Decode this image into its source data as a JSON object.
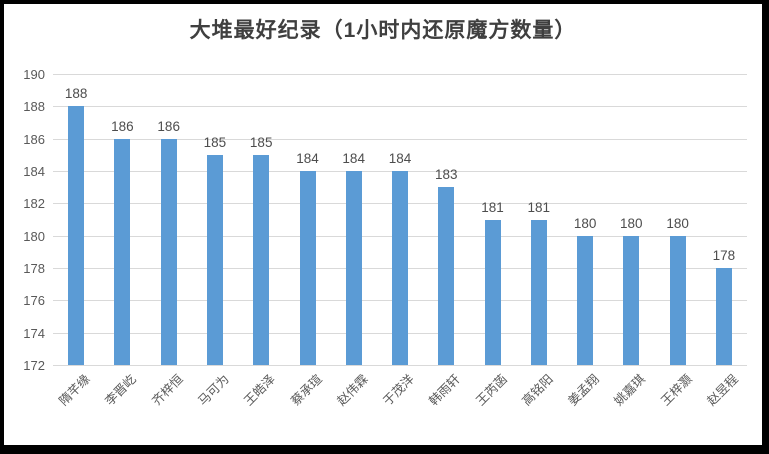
{
  "chart_data": {
    "type": "bar",
    "title": "大堆最好纪录（1小时内还原魔方数量）",
    "categories": [
      "隋芊缘",
      "李晋屹",
      "齐梓恒",
      "马可为",
      "王皓泽",
      "蔡承瑄",
      "赵伟霖",
      "于茂洋",
      "韩雨轩",
      "王芮菡",
      "高铭阳",
      "姜孟翔",
      "姚嘉琪",
      "王梓灏",
      "赵昱程"
    ],
    "values": [
      188,
      186,
      186,
      185,
      185,
      184,
      184,
      184,
      183,
      181,
      181,
      180,
      180,
      180,
      178
    ],
    "xlabel": "",
    "ylabel": "",
    "ylim": [
      172,
      190
    ],
    "yticks": [
      172,
      174,
      176,
      178,
      180,
      182,
      184,
      186,
      188,
      190
    ],
    "grid": true,
    "data_labels": true,
    "legend": "none",
    "bar_color": "#5b9bd5",
    "gridline_color": "#d9d9d9",
    "text_color": "#595959",
    "title_color": "#3f3f3f",
    "frame_border_color": "#000000",
    "background_color": "#ffffff"
  }
}
